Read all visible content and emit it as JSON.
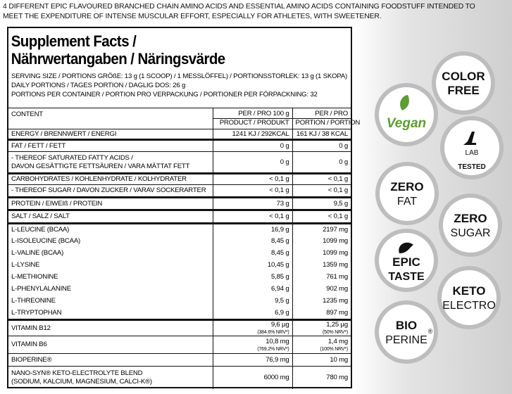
{
  "header": {
    "lines": [
      "4 DIFFERENT EPIC FLAVOURED BRANCHED CHAIN AMINO ACIDS AND ESSENTIAL AMINO ACIDS CONTAINING FOODSTUFF INTENDED TO",
      "MEET THE EXPENDITURE OF INTENSE MUSCULAR EFFORT, ESPECIALLY FOR ATHLETES, WITH SWEETENER."
    ]
  },
  "facts": {
    "title": [
      "Supplement Facts /",
      "Nährwertangaben / Näringsvärde"
    ],
    "serving": [
      "SERVING SIZE / PORTIONS GRÖßE: 13 g (1 SCOOP) / 1 MESSLÖFFEL) / PORTIONSSTORLEK: 13 g (1 SKOPA)",
      "DAILY PORTIONS / TAGES PORTION / DAGLIG DOS: 26 g",
      "PORTIONS PER CONTAINER / PORTION PRO VERPACKUNG / PORTIONER PER FÖRPACKNING: 32"
    ],
    "table": {
      "headers": {
        "content": "CONTENT",
        "per_100": [
          "PER / PRO 100 g",
          "PRODUCT / PRODUKT"
        ],
        "per_portion": [
          "PER / PRO",
          "PORTION / PORTION"
        ]
      },
      "rows": [
        {
          "label": [
            "ENERGY / BRENNWERT / ENERGI"
          ],
          "per_100": "1241 KJ / 292KCAL",
          "per_portion": "161 KJ / 38 KCAL"
        },
        {
          "label": [
            "FAT / FETT / FETT"
          ],
          "per_100": "0 g",
          "per_portion": "0 g"
        },
        {
          "label": [
            "- THEREOF SATURATED FATTY ACIDS /",
            "DAVON GESÄTTIGTE FETTSÄUREN / VARA MÄTTAT FETT"
          ],
          "per_100": "0 g",
          "per_portion": "0 g"
        },
        {
          "label": [
            "CARBOHYDRATES / KOHLENHYDRATE / KOLHYDRATER"
          ],
          "per_100": "< 0,1 g",
          "per_portion": "< 0,1 g"
        },
        {
          "label": [
            "- THEREOF SUGAR / DAVON ZUCKER / VARAV SOCKERARTER"
          ],
          "per_100": "< 0,1 g",
          "per_portion": "< 0,1 g"
        },
        {
          "label": [
            "PROTEIN / EIWEIß / PROTEIN"
          ],
          "per_100": "73 g",
          "per_portion": "9,5 g"
        },
        {
          "label": [
            "SALT / SALZ / SALT"
          ],
          "per_100": "< 0,1 g",
          "per_portion": "< 0,1 g"
        },
        {
          "label": [
            "L-LEUCINE (BCAA)"
          ],
          "per_100": "16,9 g",
          "per_portion": "2197 mg"
        },
        {
          "label": [
            "L-ISOLEUCINE (BCAA)"
          ],
          "per_100": "8,45 g",
          "per_portion": "1099 mg"
        },
        {
          "label": [
            "L-VALINE (BCAA)"
          ],
          "per_100": "8,45 g",
          "per_portion": "1099 mg"
        },
        {
          "label": [
            "L-LYSINE"
          ],
          "per_100": "10,45 g",
          "per_portion": "1359 mg"
        },
        {
          "label": [
            "L-METHIONINE"
          ],
          "per_100": "5,85 g",
          "per_portion": "761 mg"
        },
        {
          "label": [
            "L-PHENYLALANINE"
          ],
          "per_100": "6,94 g",
          "per_portion": "902 mg"
        },
        {
          "label": [
            "L-THREONINE"
          ],
          "per_100": "9,5 g",
          "per_portion": "1235 mg"
        },
        {
          "label": [
            "L-TRYPTOPHAN"
          ],
          "per_100": "6,9 g",
          "per_portion": "897 mg"
        },
        {
          "label": [
            "VITAMIN B12"
          ],
          "per_100": "9,6 µg",
          "per_100_nrv": "(384.6% NRV*)",
          "per_portion": "1,25 µg",
          "per_portion_nrv": "(50% NRV*)"
        },
        {
          "label": [
            "VITAMIN B6"
          ],
          "per_100": "10,8 mg",
          "per_100_nrv": "(769.2% NRV*)",
          "per_portion": "1,4 mg",
          "per_portion_nrv": "(100% NRV*)"
        },
        {
          "label": [
            "BIOPERINE®"
          ],
          "per_100": "76,9 mg",
          "per_portion": "10 mg"
        },
        {
          "label": [
            "NANO-SYN® KETO-ELECTROLYTE BLEND",
            "(SODIUM, KALCIUM, MAGNESIUM, CALCI-K®)"
          ],
          "per_100": "6000 mg",
          "per_portion": "780 mg"
        }
      ]
    }
  },
  "badges": [
    {
      "lines": [
        "COLOR",
        "FREE"
      ]
    },
    {
      "lines": [
        "Vegan"
      ]
    },
    {
      "lines": [
        "LAB",
        "TESTED"
      ]
    },
    {
      "lines": [
        "ZERO",
        "FAT"
      ]
    },
    {
      "lines": [
        "ZERO",
        "SUGAR"
      ]
    },
    {
      "lines": [
        "EPIC",
        "TASTE"
      ]
    },
    {
      "lines": [
        "KETO",
        "ELECTRO"
      ]
    },
    {
      "lines": [
        "BIO",
        "PERINE",
        "®"
      ]
    }
  ]
}
